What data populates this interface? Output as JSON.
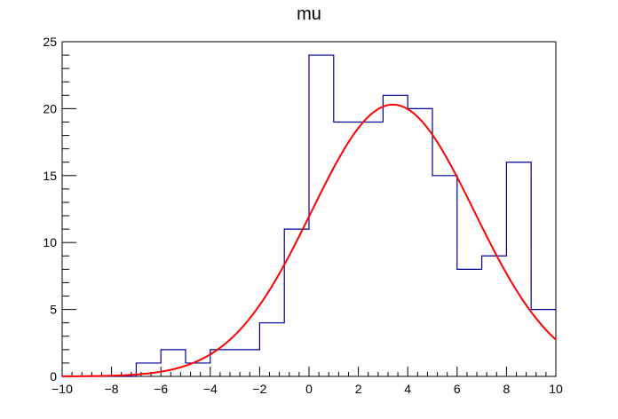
{
  "chart_data": {
    "type": "histogram",
    "title": "mu",
    "xlabel": "",
    "ylabel": "",
    "xlim": [
      -10,
      10
    ],
    "ylim": [
      0,
      25
    ],
    "x_major_ticks": [
      -10,
      -8,
      -6,
      -4,
      -2,
      0,
      2,
      4,
      6,
      8,
      10
    ],
    "y_major_ticks": [
      0,
      5,
      10,
      15,
      20,
      25
    ],
    "grid": false,
    "legend": "none",
    "histogram": {
      "color": "#000099",
      "bin_width": 1,
      "bin_edges": [
        -10,
        -9,
        -8,
        -7,
        -6,
        -5,
        -4,
        -3,
        -2,
        -1,
        0,
        1,
        2,
        3,
        4,
        5,
        6,
        7,
        8,
        9,
        10
      ],
      "counts": [
        0,
        0,
        0,
        1,
        2,
        1,
        2,
        2,
        4,
        11,
        24,
        19,
        19,
        21,
        20,
        15,
        8,
        9,
        16,
        5
      ]
    },
    "fit": {
      "type": "gaussian",
      "color": "#ff0000",
      "amplitude": 20.3,
      "mean": 3.4,
      "sigma": 3.3
    }
  }
}
